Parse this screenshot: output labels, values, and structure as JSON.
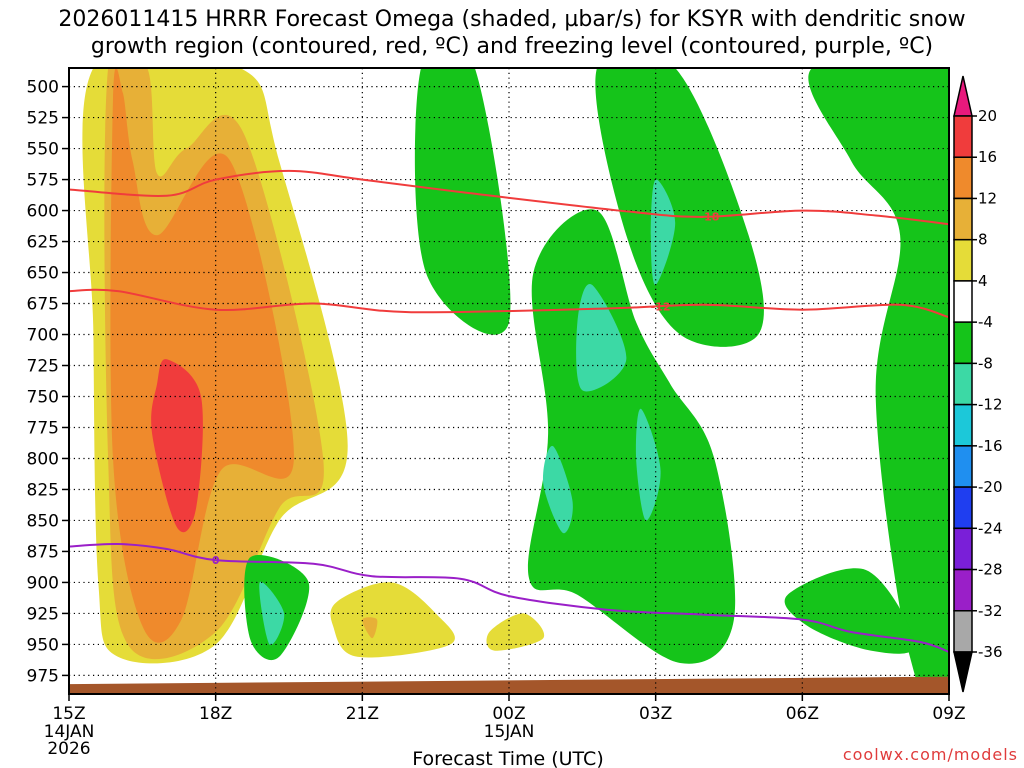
{
  "chart_data": {
    "type": "time-height cross-section (filled contour)",
    "title_line1": "2026011415 HRRR Forecast Omega (shaded, µbar/s) for KSYR with dendritic snow",
    "title_line2": "growth region (contoured, red, ºC) and freezing level (contoured, purple, ºC)",
    "xlabel": "Forecast Time (UTC)",
    "x_ticks": [
      {
        "hour": 0,
        "label": "15Z",
        "sub1": "14JAN",
        "sub2": "2026"
      },
      {
        "hour": 3,
        "label": "18Z",
        "sub1": "",
        "sub2": ""
      },
      {
        "hour": 6,
        "label": "21Z",
        "sub1": "",
        "sub2": ""
      },
      {
        "hour": 9,
        "label": "00Z",
        "sub1": "15JAN",
        "sub2": ""
      },
      {
        "hour": 12,
        "label": "03Z",
        "sub1": "",
        "sub2": ""
      },
      {
        "hour": 15,
        "label": "06Z",
        "sub1": "",
        "sub2": ""
      },
      {
        "hour": 18,
        "label": "09Z",
        "sub1": "",
        "sub2": ""
      }
    ],
    "y_ticks": [
      500,
      525,
      550,
      575,
      600,
      625,
      650,
      675,
      700,
      725,
      750,
      775,
      800,
      825,
      850,
      875,
      900,
      925,
      950,
      975
    ],
    "y_units": "hPa",
    "ylim": [
      485,
      990
    ],
    "xlim": [
      0,
      18
    ],
    "colorbar": {
      "labels": [
        "20",
        "16",
        "12",
        "8",
        "4",
        "-4",
        "-8",
        "-12",
        "-16",
        "-20",
        "-24",
        "-28",
        "-32",
        "-36"
      ],
      "colors": [
        "#e8197c",
        "#f03c3c",
        "#ef8a2c",
        "#e7b037",
        "#e5dc38",
        "#ffffff",
        "#15c41a",
        "#3cd9a5",
        "#1cc8d9",
        "#1f8ff0",
        "#1f3ef0",
        "#7a1fd8",
        "#9a1fc8",
        "#a8a8a8",
        "#000000"
      ]
    },
    "omega_regions": [
      {
        "band": "4 to 8",
        "color": "#e5dc38",
        "points": [
          [
            0.5,
            485
          ],
          [
            3.5,
            485
          ],
          [
            4.3,
            560
          ],
          [
            5.7,
            790
          ],
          [
            4.3,
            850
          ],
          [
            3,
            950
          ],
          [
            1,
            960
          ],
          [
            0.6,
            900
          ],
          [
            0.5,
            700
          ]
        ]
      },
      {
        "band": "8 to 12",
        "color": "#e7b037",
        "points": [
          [
            0.8,
            485
          ],
          [
            1.6,
            485
          ],
          [
            1.8,
            570
          ],
          [
            2.4,
            550
          ],
          [
            3.6,
            540
          ],
          [
            5.2,
            800
          ],
          [
            4.3,
            840
          ],
          [
            3,
            940
          ],
          [
            1.2,
            950
          ],
          [
            0.8,
            800
          ]
        ]
      },
      {
        "band": "12 to 16",
        "color": "#ef8a2c",
        "points": [
          [
            0.9,
            510
          ],
          [
            1.1,
            505
          ],
          [
            1.3,
            560
          ],
          [
            1.8,
            620
          ],
          [
            3.3,
            560
          ],
          [
            4.6,
            800
          ],
          [
            3.1,
            810
          ],
          [
            2.3,
            930
          ],
          [
            1.5,
            935
          ],
          [
            0.9,
            800
          ]
        ]
      },
      {
        "band": "16 to 20",
        "color": "#f03c3c",
        "points": [
          [
            2,
            720
          ],
          [
            2.7,
            750
          ],
          [
            2.6,
            840
          ],
          [
            2.2,
            855
          ],
          [
            1.7,
            780
          ],
          [
            1.8,
            740
          ]
        ]
      },
      {
        "band": "-4 to -8",
        "color": "#15c41a",
        "points": [
          [
            7.2,
            485
          ],
          [
            8.3,
            485
          ],
          [
            9,
            690
          ],
          [
            7.3,
            650
          ]
        ]
      },
      {
        "band": "-4 to -8",
        "color": "#15c41a",
        "points": [
          [
            10.8,
            485
          ],
          [
            12.4,
            485
          ],
          [
            13.9,
            620
          ],
          [
            14.1,
            700
          ],
          [
            12.5,
            700
          ],
          [
            11.4,
            620
          ]
        ]
      },
      {
        "band": "-4 to -8",
        "color": "#15c41a",
        "points": [
          [
            15.2,
            485
          ],
          [
            18,
            485
          ],
          [
            18,
            975
          ],
          [
            17.2,
            960
          ],
          [
            16.5,
            750
          ],
          [
            17,
            620
          ],
          [
            16,
            560
          ]
        ]
      },
      {
        "band": "-4 to -8",
        "color": "#15c41a",
        "points": [
          [
            9.5,
            650
          ],
          [
            10.8,
            600
          ],
          [
            11.6,
            690
          ],
          [
            12.3,
            740
          ],
          [
            13.2,
            800
          ],
          [
            13.6,
            930
          ],
          [
            12.5,
            965
          ],
          [
            10.4,
            910
          ],
          [
            9.4,
            895
          ],
          [
            9.8,
            780
          ]
        ]
      },
      {
        "band": "-4 to -8",
        "color": "#15c41a",
        "points": [
          [
            14.7,
            910
          ],
          [
            16.3,
            890
          ],
          [
            17.3,
            950
          ],
          [
            16.4,
            955
          ],
          [
            15.1,
            935
          ]
        ]
      },
      {
        "band": "-4 to -8",
        "color": "#15c41a",
        "points": [
          [
            3.7,
            880
          ],
          [
            4.9,
            900
          ],
          [
            4.3,
            960
          ],
          [
            3.7,
            945
          ]
        ]
      },
      {
        "band": "-8 to -12",
        "color": "#3cd9a5",
        "points": [
          [
            10.7,
            660
          ],
          [
            11.4,
            720
          ],
          [
            10.5,
            745
          ],
          [
            10.4,
            690
          ]
        ]
      },
      {
        "band": "-8 to -12",
        "color": "#3cd9a5",
        "points": [
          [
            12,
            575
          ],
          [
            12.4,
            610
          ],
          [
            12,
            660
          ],
          [
            11.9,
            620
          ]
        ]
      },
      {
        "band": "-8 to -12",
        "color": "#3cd9a5",
        "points": [
          [
            9.9,
            790
          ],
          [
            10.3,
            835
          ],
          [
            10.1,
            860
          ],
          [
            9.7,
            820
          ]
        ]
      },
      {
        "band": "-8 to -12",
        "color": "#3cd9a5",
        "points": [
          [
            11.7,
            760
          ],
          [
            12.1,
            810
          ],
          [
            11.8,
            850
          ],
          [
            11.6,
            800
          ]
        ]
      },
      {
        "band": "-8 to -12",
        "color": "#3cd9a5",
        "points": [
          [
            3.9,
            900
          ],
          [
            4.4,
            925
          ],
          [
            4.1,
            950
          ]
        ]
      },
      {
        "band": "4 to 8",
        "color": "#e5dc38",
        "points": [
          [
            5.5,
            915
          ],
          [
            6.6,
            900
          ],
          [
            7.5,
            925
          ],
          [
            7.8,
            950
          ],
          [
            5.9,
            960
          ],
          [
            5.4,
            935
          ]
        ]
      },
      {
        "band": "4 to 8",
        "color": "#e5dc38",
        "points": [
          [
            8.6,
            940
          ],
          [
            9.3,
            925
          ],
          [
            9.7,
            945
          ],
          [
            8.7,
            955
          ]
        ]
      },
      {
        "band": "8 to 12",
        "color": "#e7b037",
        "points": [
          [
            6,
            930
          ],
          [
            6.3,
            930
          ],
          [
            6.2,
            945
          ]
        ]
      }
    ],
    "contours": [
      {
        "name": "-18 dendritic",
        "color": "#f03c3c",
        "label": "-18",
        "label_hour": 13.1,
        "points": [
          [
            0,
            583
          ],
          [
            2,
            588
          ],
          [
            3,
            575
          ],
          [
            4.5,
            568
          ],
          [
            6,
            575
          ],
          [
            8,
            585
          ],
          [
            11.5,
            601
          ],
          [
            13,
            605
          ],
          [
            15,
            600
          ],
          [
            16.5,
            604
          ],
          [
            18,
            611
          ]
        ]
      },
      {
        "name": "-12 dendritic",
        "color": "#f03c3c",
        "label": "-12",
        "label_hour": 12.1,
        "points": [
          [
            0,
            665
          ],
          [
            1,
            665
          ],
          [
            3,
            680
          ],
          [
            5,
            675
          ],
          [
            7,
            682
          ],
          [
            11,
            679
          ],
          [
            13,
            676
          ],
          [
            15,
            680
          ],
          [
            17,
            676
          ],
          [
            18,
            686
          ]
        ]
      },
      {
        "name": "0 freezing level",
        "color": "#9a1fc8",
        "label": "0",
        "label_hour": 3.0,
        "points": [
          [
            0,
            871
          ],
          [
            1,
            869
          ],
          [
            2,
            873
          ],
          [
            3,
            882
          ],
          [
            5,
            885
          ],
          [
            6.2,
            895
          ],
          [
            8,
            897
          ],
          [
            9,
            911
          ],
          [
            11,
            922
          ],
          [
            13,
            926
          ],
          [
            15,
            930
          ],
          [
            16,
            940
          ],
          [
            17.4,
            948
          ],
          [
            18,
            956
          ]
        ]
      }
    ],
    "ground": {
      "color": "#a4562a",
      "top_left": 982,
      "top_right": 976
    },
    "credit": "coolwx.com/models"
  }
}
